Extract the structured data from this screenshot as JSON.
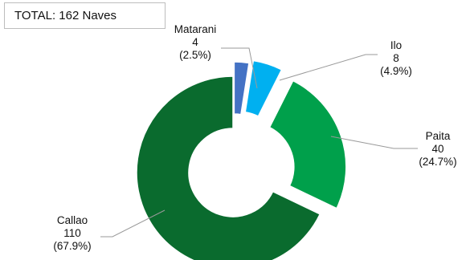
{
  "total_box": {
    "label": "TOTAL:  162 Naves"
  },
  "chart_data": {
    "type": "pie",
    "variant": "donut-exploded",
    "title": "",
    "total": 162,
    "unit": "Naves",
    "slices": [
      {
        "name": "Matarani",
        "value": 4,
        "percent": "(2.5%)",
        "color": "#4472c4"
      },
      {
        "name": "Ilo",
        "value": 8,
        "percent": "(4.9%)",
        "color": "#00b0f0"
      },
      {
        "name": "Paita",
        "value": 40,
        "percent": "(24.7%)",
        "color": "#00a04b"
      },
      {
        "name": "Callao",
        "value": 110,
        "percent": "(67.9%)",
        "color": "#0a6b2e"
      }
    ]
  }
}
